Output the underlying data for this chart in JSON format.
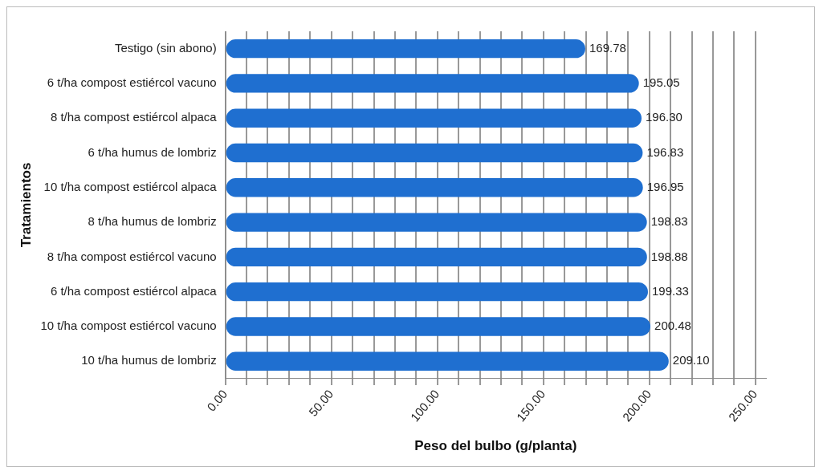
{
  "chart_data": {
    "type": "bar",
    "orientation": "horizontal",
    "xlabel": "Peso del bulbo (g/planta)",
    "ylabel": "Tratamientos",
    "categories": [
      "Testigo (sin abono)",
      "6 t/ha compost estiércol vacuno",
      "8 t/ha compost estiércol alpaca",
      "6 t/ha humus de lombriz",
      "10 t/ha compost estiércol alpaca",
      "8 t/ha humus de lombriz",
      "8 t/ha compost estiércol vacuno",
      "6 t/ha compost estiércol alpaca",
      "10 t/ha compost estiércol vacuno",
      "10 t/ha humus de lombriz"
    ],
    "values": [
      169.78,
      195.05,
      196.3,
      196.83,
      196.95,
      198.83,
      198.88,
      199.33,
      200.48,
      209.1
    ],
    "value_labels": [
      "169.78",
      "195.05",
      "196.30",
      "196.83",
      "196.95",
      "198.83",
      "198.88",
      "199.33",
      "200.48",
      "209.10"
    ],
    "color": "#1f6fd0",
    "xlim": [
      0,
      255
    ],
    "xticks": [
      {
        "value": 0,
        "label": "0.00"
      },
      {
        "value": 10,
        "label": null
      },
      {
        "value": 20,
        "label": null
      },
      {
        "value": 30,
        "label": null
      },
      {
        "value": 40,
        "label": null
      },
      {
        "value": 50,
        "label": "50.00"
      },
      {
        "value": 60,
        "label": null
      },
      {
        "value": 70,
        "label": null
      },
      {
        "value": 80,
        "label": null
      },
      {
        "value": 90,
        "label": null
      },
      {
        "value": 100,
        "label": "100.00"
      },
      {
        "value": 110,
        "label": null
      },
      {
        "value": 120,
        "label": null
      },
      {
        "value": 130,
        "label": null
      },
      {
        "value": 140,
        "label": null
      },
      {
        "value": 150,
        "label": "150.00"
      },
      {
        "value": 160,
        "label": null
      },
      {
        "value": 170,
        "label": null
      },
      {
        "value": 180,
        "label": null
      },
      {
        "value": 190,
        "label": null
      },
      {
        "value": 200,
        "label": "200.00"
      },
      {
        "value": 210,
        "label": null
      },
      {
        "value": 220,
        "label": null
      },
      {
        "value": 230,
        "label": null
      },
      {
        "value": 240,
        "label": null
      },
      {
        "value": 250,
        "label": "250.00"
      }
    ],
    "grid": "x",
    "legend": false
  }
}
